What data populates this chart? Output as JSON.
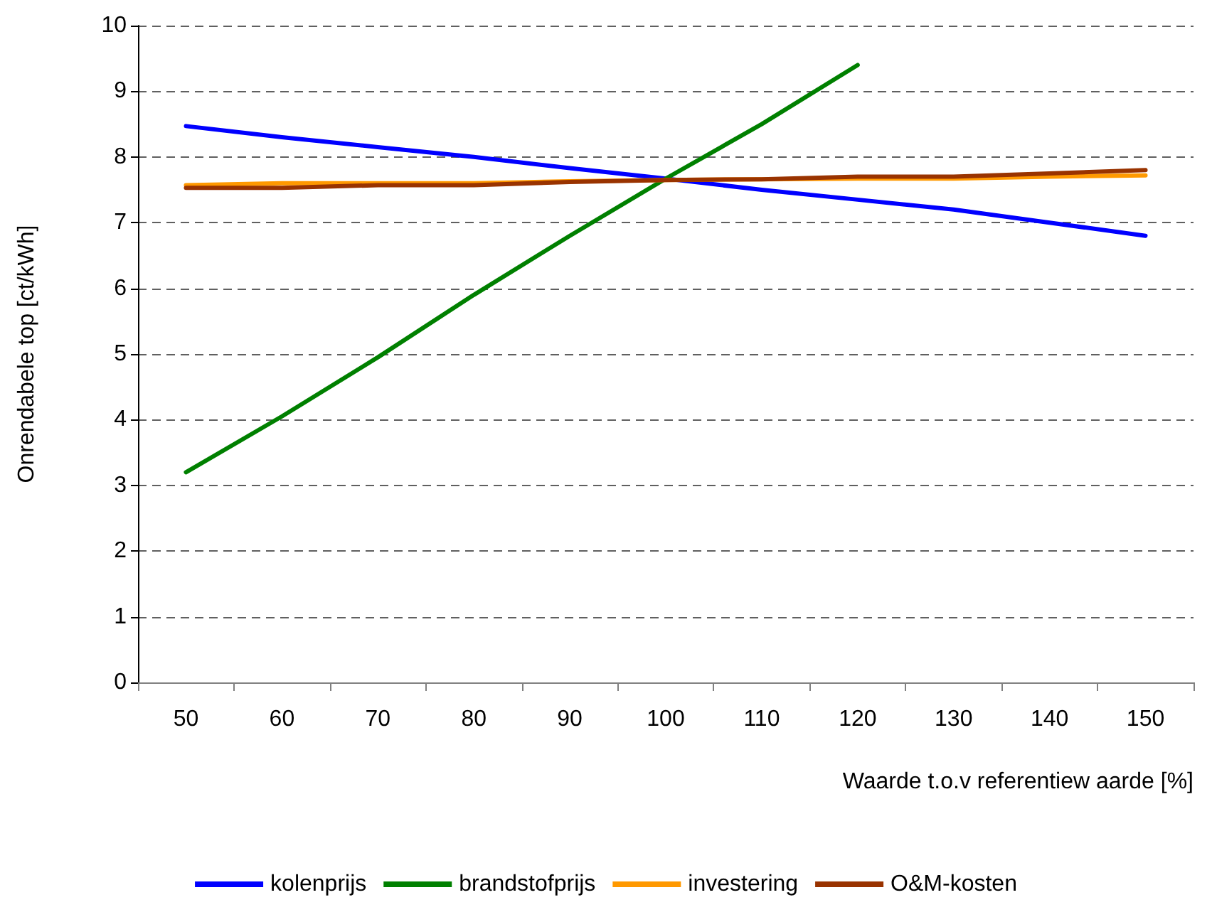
{
  "chart_data": {
    "type": "line",
    "xlabel": "Waarde t.o.v referentiew aarde [%]",
    "ylabel": "Onrendabele top [ct/kWh]",
    "categories": [
      "50",
      "60",
      "70",
      "80",
      "90",
      "100",
      "110",
      "120",
      "130",
      "140",
      "150"
    ],
    "series": [
      {
        "name": "kolenprijs",
        "color": "#0000ff",
        "values": [
          8.47,
          8.3,
          8.15,
          8.0,
          7.83,
          7.67,
          7.5,
          7.35,
          7.2,
          7.0,
          6.8
        ]
      },
      {
        "name": "brandstofprijs",
        "color": "#008000",
        "values": [
          3.2,
          4.05,
          4.95,
          5.9,
          6.8,
          7.67,
          8.5,
          9.4,
          null,
          null,
          null
        ]
      },
      {
        "name": "investering",
        "color": "#ff9900",
        "values": [
          7.57,
          7.6,
          7.6,
          7.6,
          7.63,
          7.65,
          7.66,
          7.67,
          7.67,
          7.7,
          7.72
        ]
      },
      {
        "name": "O&M-kosten",
        "color": "#993300",
        "values": [
          7.53,
          7.53,
          7.57,
          7.57,
          7.62,
          7.65,
          7.66,
          7.7,
          7.7,
          7.75,
          7.8
        ]
      }
    ],
    "ylim": [
      0,
      10
    ],
    "yticks": [
      0,
      1,
      2,
      3,
      4,
      5,
      6,
      7,
      8,
      9,
      10
    ],
    "grid": "y",
    "legend": "bottom",
    "marker": "none",
    "line_style": "solid"
  }
}
